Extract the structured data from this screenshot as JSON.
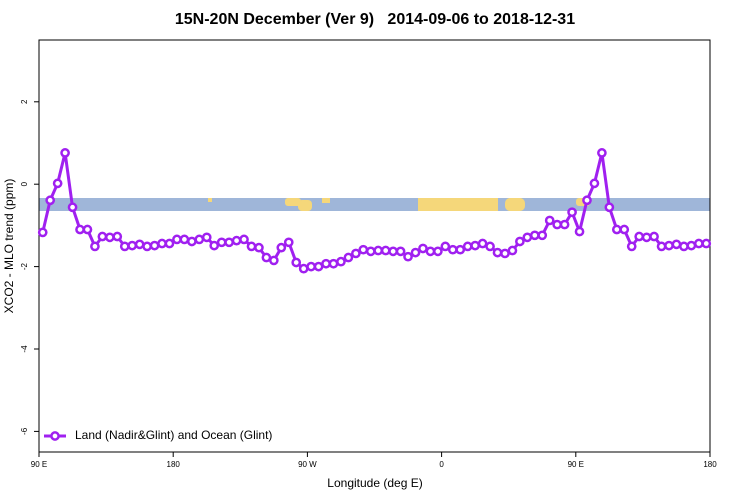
{
  "chart_data": {
    "type": "line",
    "title": "15N-20N December (Ver 9)   2014-09-06 to 2018-12-31",
    "xlabel": "Longitude (deg E)",
    "ylabel": "XCO2 - MLO trend (ppm)",
    "xlim": [
      90,
      540
    ],
    "xticks": [
      {
        "value": 90,
        "label": "90 E"
      },
      180,
      {
        "value": 270,
        "label": "90 W"
      },
      {
        "value": 360,
        "label": "0"
      },
      {
        "value": 450,
        "label": "90 E"
      },
      {
        "value": 540,
        "label": "180"
      }
    ],
    "ylim": [
      -6.5,
      3.5
    ],
    "yticks": [
      -6,
      -4,
      -2,
      0,
      2
    ],
    "legend": "bottom-left",
    "series": [
      {
        "name": "Land (Nadir&Glint) and Ocean (Glint)",
        "color": "#a020f0",
        "x": [
          92.5,
          97.5,
          102.5,
          107.5,
          112.5,
          117.5,
          122.5,
          127.5,
          132.5,
          137.5,
          142.5,
          147.5,
          152.5,
          157.5,
          162.5,
          167.5,
          172.5,
          177.5,
          182.5,
          187.5,
          192.5,
          197.5,
          202.5,
          207.5,
          212.5,
          217.5,
          222.5,
          227.5,
          232.5,
          237.5,
          242.5,
          247.5,
          252.5,
          257.5,
          262.5,
          267.5,
          272.5,
          277.5,
          282.5,
          287.5,
          292.5,
          297.5,
          302.5,
          307.5,
          312.5,
          317.5,
          322.5,
          327.5,
          332.5,
          337.5,
          342.5,
          347.5,
          352.5,
          357.5,
          362.5,
          367.5,
          372.5,
          377.5,
          382.5,
          387.5,
          392.5,
          397.5,
          402.5,
          407.5,
          412.5,
          417.5,
          422.5,
          427.5,
          432.5,
          437.5,
          442.5,
          447.5,
          452.5,
          457.5,
          462.5,
          467.5,
          472.5,
          477.5,
          482.5,
          487.5,
          492.5,
          497.5,
          502.5,
          507.5,
          512.5,
          517.5,
          522.5,
          527.5,
          532.5,
          537.5
        ],
        "values": [
          -1.17,
          -0.39,
          0.02,
          0.76,
          -0.56,
          -1.1,
          -1.1,
          -1.51,
          -1.27,
          -1.29,
          -1.27,
          -1.51,
          -1.49,
          -1.46,
          -1.51,
          -1.49,
          -1.44,
          -1.44,
          -1.34,
          -1.34,
          -1.39,
          -1.34,
          -1.29,
          -1.49,
          -1.41,
          -1.41,
          -1.37,
          -1.34,
          -1.51,
          -1.54,
          -1.78,
          -1.85,
          -1.54,
          -1.41,
          -1.9,
          -2.05,
          -2.0,
          -2.0,
          -1.93,
          -1.93,
          -1.88,
          -1.78,
          -1.68,
          -1.59,
          -1.63,
          -1.61,
          -1.61,
          -1.63,
          -1.63,
          -1.76,
          -1.66,
          -1.56,
          -1.63,
          -1.63,
          -1.51,
          -1.59,
          -1.59,
          -1.51,
          -1.49,
          -1.44,
          -1.51,
          -1.66,
          -1.68,
          -1.61,
          -1.39,
          -1.29,
          -1.24,
          -1.24,
          -0.88,
          -0.98,
          -0.98,
          -0.68,
          -1.15,
          -0.39,
          0.02,
          0.76,
          -0.56,
          -1.1,
          -1.1,
          -1.51,
          -1.27,
          -1.29,
          -1.27,
          -1.51,
          -1.49,
          -1.46,
          -1.51,
          -1.49,
          -1.44,
          -1.44
        ]
      }
    ]
  }
}
